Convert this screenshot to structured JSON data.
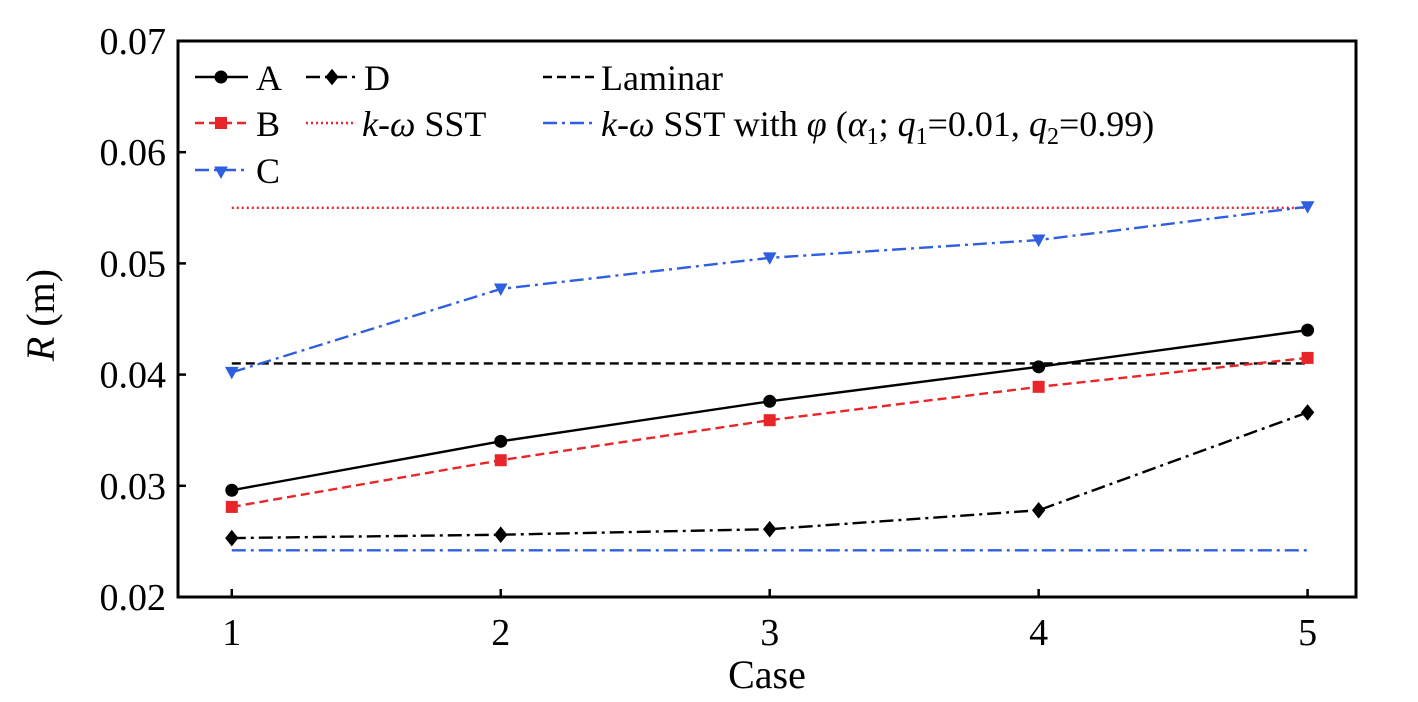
{
  "chart_data": {
    "type": "line",
    "xlabel": "Case",
    "ylabel_symbol": "R",
    "ylabel_unit": " (m)",
    "x": [
      1,
      2,
      3,
      4,
      5
    ],
    "xlim": [
      0.8,
      5.18
    ],
    "ylim": [
      0.02,
      0.07
    ],
    "xticks": [
      "1",
      "2",
      "3",
      "4",
      "5"
    ],
    "yticks": [
      "0.02",
      "0.03",
      "0.04",
      "0.05",
      "0.06",
      "0.07"
    ],
    "legend_placement": "top-left",
    "grid": false,
    "series": [
      {
        "name": "A",
        "color": "#000000",
        "dash": "solid",
        "marker": "circle",
        "values": [
          0.0296,
          0.034,
          0.0376,
          0.0407,
          0.044
        ]
      },
      {
        "name": "B",
        "color": "#e8262a",
        "dash": "dashed",
        "marker": "square",
        "values": [
          0.0281,
          0.0323,
          0.0359,
          0.0389,
          0.0415
        ]
      },
      {
        "name": "C",
        "color": "#2f5fe0",
        "dash": "dashdot",
        "marker": "triangle-down",
        "values": [
          0.0402,
          0.0477,
          0.0505,
          0.0521,
          0.0551
        ]
      },
      {
        "name": "D",
        "color": "#000000",
        "dash": "dashdot",
        "marker": "diamond",
        "values": [
          0.0253,
          0.0256,
          0.0261,
          0.0278,
          0.0366
        ]
      }
    ],
    "reference_lines": [
      {
        "name": "Laminar",
        "color": "#000000",
        "dash": "dashed",
        "value": 0.041
      },
      {
        "name_italic": "k-ω",
        "name_rest": " SST",
        "color": "#e8262a",
        "dash": "dotted",
        "value": 0.055
      },
      {
        "name_italic": "k-ω",
        "name_rest": " SST with ",
        "phi": "φ",
        "open": " (",
        "alpha": "α",
        "alpha_sub": "1",
        "semi": "; ",
        "q1": "q",
        "q1_sub": "1",
        "q1_val": "=0.01, ",
        "q2": "q",
        "q2_sub": "2",
        "q2_val": "=0.99)",
        "color": "#2f5fe0",
        "dash": "dashdot",
        "value": 0.0242
      }
    ]
  }
}
